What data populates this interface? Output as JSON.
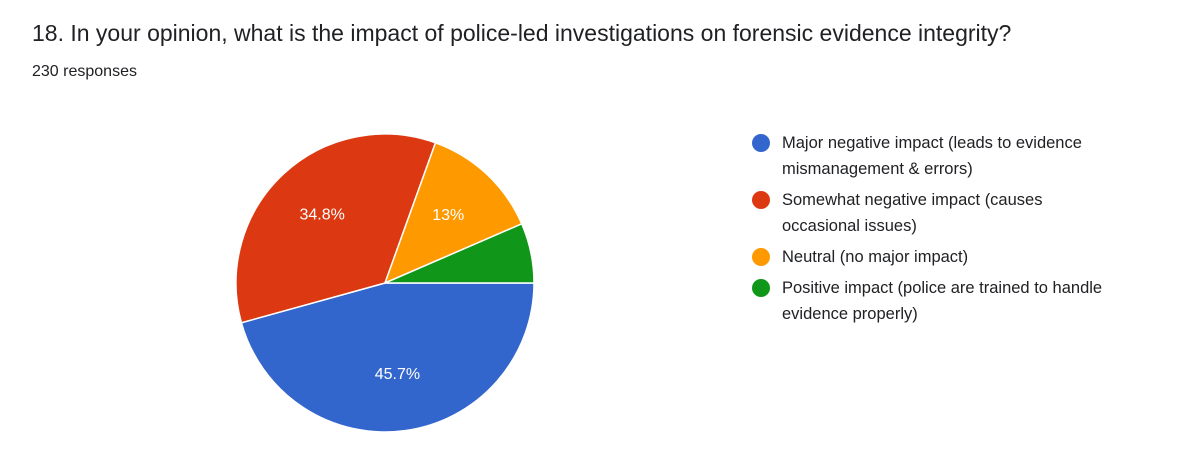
{
  "question": {
    "title": "18. In your opinion, what is the impact of police-led investigations on forensic evidence integrity?",
    "responses": "230 responses"
  },
  "chart_data": {
    "type": "pie",
    "start_angle_deg": 0,
    "direction": "clockwise",
    "slices": [
      {
        "label": "Major negative impact (leads to evidence mismanagement & errors)",
        "value": 45.7,
        "display": "45.7%",
        "color": "#3366cc"
      },
      {
        "label": "Somewhat negative impact (causes occasional issues)",
        "value": 34.8,
        "display": "34.8%",
        "color": "#dc3912"
      },
      {
        "label": "Neutral (no major impact)",
        "value": 13.0,
        "display": "13%",
        "color": "#ff9900"
      },
      {
        "label": "Positive impact (police are trained to handle evidence properly)",
        "value": 6.5,
        "display": "",
        "color": "#109618"
      }
    ],
    "legend_position": "right"
  }
}
